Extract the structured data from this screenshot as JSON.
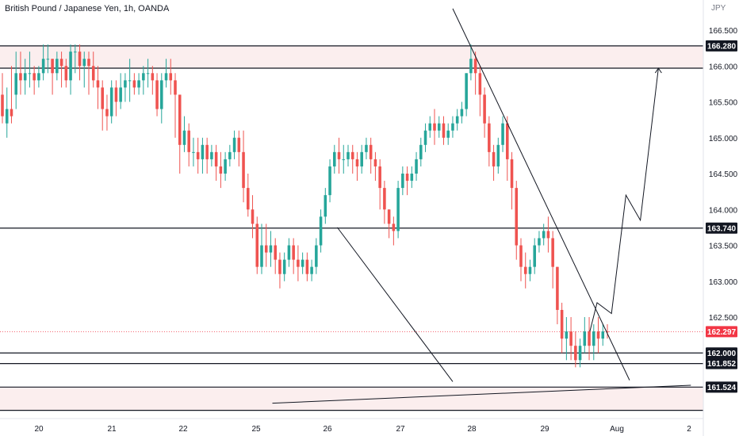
{
  "header": {
    "title": "British Pound / Japanese Yen, 1h, OANDA",
    "currency": "JPY"
  },
  "colors": {
    "up": "#26a69a",
    "down": "#ef5350",
    "zone": "#fbeeee",
    "line": "#131722",
    "last_price": "#f23645"
  },
  "chart_data": {
    "type": "candlestick",
    "instrument": "British Pound / Japanese Yen",
    "timeframe": "1h",
    "source": "OANDA",
    "currency": "JPY",
    "xlabels": [
      "20",
      "21",
      "22",
      "25",
      "26",
      "27",
      "28",
      "29",
      "Aug",
      "2"
    ],
    "yticks": [
      166.5,
      166.0,
      165.5,
      165.0,
      164.5,
      164.0,
      163.5,
      163.0,
      162.5,
      162.0
    ],
    "ylim": [
      161.25,
      166.9
    ],
    "price_labels": [
      {
        "value": "166.280",
        "kind": "level"
      },
      {
        "value": "163.740",
        "kind": "level"
      },
      {
        "value": "162.297",
        "kind": "last"
      },
      {
        "value": "162.000",
        "kind": "level"
      },
      {
        "value": "161.852",
        "kind": "level"
      },
      {
        "value": "161.524",
        "kind": "level"
      }
    ],
    "horizontal_levels": [
      166.28,
      165.97,
      163.74,
      162.0,
      161.852,
      161.524,
      161.2
    ],
    "zones": [
      [
        165.97,
        166.28
      ],
      [
        161.2,
        161.524
      ]
    ],
    "last_price": 162.297,
    "trend_lines": [
      {
        "x1": 0.0,
        "y1": 166.8,
        "x2": 2.45,
        "y2": 161.62
      },
      {
        "x1": -1.6,
        "y1": 163.75,
        "x2": 0.0,
        "y2": 161.6
      },
      {
        "x1": -2.5,
        "y1": 161.3,
        "x2": 3.3,
        "y2": 161.55
      }
    ],
    "projection": [
      [
        1.9,
        162.3
      ],
      [
        2.0,
        162.7
      ],
      [
        2.2,
        162.55
      ],
      [
        2.4,
        164.2
      ],
      [
        2.6,
        163.85
      ],
      [
        2.85,
        165.97
      ]
    ],
    "candles": [
      [
        165.6,
        165.9,
        165.3,
        165.2
      ],
      [
        165.2,
        165.7,
        165.4,
        165.0
      ],
      [
        165.4,
        166.0,
        165.3,
        165.2
      ],
      [
        165.6,
        166.2,
        165.9,
        165.4
      ],
      [
        165.9,
        166.2,
        165.8,
        165.6
      ],
      [
        165.8,
        166.1,
        165.9,
        165.6
      ],
      [
        165.9,
        166.2,
        165.9,
        165.7
      ],
      [
        165.9,
        166.0,
        165.8,
        165.6
      ],
      [
        165.8,
        166.0,
        165.9,
        165.7
      ],
      [
        165.9,
        166.3,
        166.1,
        165.8
      ],
      [
        166.1,
        166.3,
        166.1,
        165.9
      ],
      [
        166.1,
        166.1,
        165.9,
        165.6
      ],
      [
        165.9,
        166.2,
        166.1,
        165.8
      ],
      [
        166.1,
        166.2,
        166.0,
        165.7
      ],
      [
        166.0,
        166.1,
        165.8,
        165.7
      ],
      [
        165.8,
        166.3,
        166.2,
        165.6
      ],
      [
        166.2,
        166.3,
        166.2,
        165.9
      ],
      [
        166.2,
        166.3,
        166.0,
        165.8
      ],
      [
        166.0,
        166.2,
        166.1,
        165.7
      ],
      [
        166.1,
        166.2,
        166.0,
        165.6
      ],
      [
        166.0,
        166.2,
        165.8,
        165.7
      ],
      [
        165.8,
        166.0,
        165.7,
        165.4
      ],
      [
        165.7,
        165.8,
        165.4,
        165.1
      ],
      [
        165.4,
        165.6,
        165.3,
        165.1
      ],
      [
        165.3,
        165.8,
        165.7,
        165.2
      ],
      [
        165.7,
        165.8,
        165.5,
        165.3
      ],
      [
        165.5,
        165.9,
        165.7,
        165.4
      ],
      [
        165.7,
        165.9,
        165.8,
        165.5
      ],
      [
        165.8,
        166.1,
        165.8,
        165.5
      ],
      [
        165.8,
        165.9,
        165.7,
        165.6
      ],
      [
        165.7,
        165.9,
        165.8,
        165.6
      ],
      [
        165.8,
        166.0,
        165.9,
        165.6
      ],
      [
        165.9,
        166.1,
        165.9,
        165.7
      ],
      [
        165.9,
        166.0,
        165.8,
        165.6
      ],
      [
        165.8,
        165.9,
        165.4,
        165.3
      ],
      [
        165.4,
        165.9,
        165.8,
        165.2
      ],
      [
        165.8,
        166.1,
        165.9,
        165.7
      ],
      [
        165.9,
        166.1,
        165.8,
        165.6
      ],
      [
        165.8,
        165.9,
        165.6,
        165.0
      ],
      [
        165.6,
        165.6,
        164.9,
        164.5
      ],
      [
        164.9,
        165.3,
        165.1,
        164.8
      ],
      [
        165.1,
        165.2,
        164.8,
        164.6
      ],
      [
        164.8,
        165.0,
        164.8,
        164.6
      ],
      [
        164.8,
        165.0,
        164.7,
        164.5
      ],
      [
        164.7,
        165.0,
        164.9,
        164.5
      ],
      [
        164.9,
        165.0,
        164.7,
        164.5
      ],
      [
        164.7,
        164.9,
        164.8,
        164.6
      ],
      [
        164.8,
        164.9,
        164.6,
        164.4
      ],
      [
        164.6,
        164.8,
        164.5,
        164.3
      ],
      [
        164.5,
        164.8,
        164.7,
        164.4
      ],
      [
        164.7,
        164.9,
        164.8,
        164.6
      ],
      [
        164.8,
        165.1,
        165.0,
        164.7
      ],
      [
        165.0,
        165.1,
        164.8,
        164.6
      ],
      [
        164.8,
        165.1,
        164.3,
        164.1
      ],
      [
        164.3,
        164.5,
        164.0,
        163.9
      ],
      [
        164.0,
        164.2,
        163.8,
        163.6
      ],
      [
        163.8,
        163.9,
        163.2,
        163.1
      ],
      [
        163.2,
        163.8,
        163.5,
        163.1
      ],
      [
        163.5,
        163.8,
        163.4,
        163.2
      ],
      [
        163.4,
        163.7,
        163.5,
        163.2
      ],
      [
        163.5,
        163.6,
        163.3,
        163.1
      ],
      [
        163.3,
        163.4,
        163.1,
        162.9
      ],
      [
        163.1,
        163.4,
        163.3,
        163.0
      ],
      [
        163.3,
        163.6,
        163.5,
        163.2
      ],
      [
        163.5,
        163.6,
        163.3,
        163.1
      ],
      [
        163.3,
        163.5,
        163.2,
        163.0
      ],
      [
        163.2,
        163.4,
        163.3,
        163.1
      ],
      [
        163.3,
        163.4,
        163.1,
        163.0
      ],
      [
        163.1,
        163.3,
        163.2,
        163.0
      ],
      [
        163.2,
        163.6,
        163.5,
        163.1
      ],
      [
        163.5,
        164.0,
        163.9,
        163.4
      ],
      [
        163.9,
        164.3,
        164.2,
        163.8
      ],
      [
        164.2,
        164.7,
        164.6,
        164.1
      ],
      [
        164.6,
        164.9,
        164.8,
        164.5
      ],
      [
        164.8,
        165.0,
        164.7,
        164.5
      ],
      [
        164.7,
        164.9,
        164.7,
        164.5
      ],
      [
        164.7,
        164.9,
        164.8,
        164.6
      ],
      [
        164.8,
        164.9,
        164.7,
        164.5
      ],
      [
        164.7,
        164.8,
        164.6,
        164.4
      ],
      [
        164.6,
        164.9,
        164.8,
        164.5
      ],
      [
        164.8,
        165.0,
        164.9,
        164.7
      ],
      [
        164.9,
        165.0,
        164.7,
        164.5
      ],
      [
        164.7,
        164.8,
        164.6,
        164.4
      ],
      [
        164.6,
        164.7,
        164.3,
        164.0
      ],
      [
        164.3,
        164.4,
        164.0,
        163.8
      ],
      [
        164.0,
        164.0,
        163.8,
        163.6
      ],
      [
        163.8,
        163.9,
        163.7,
        163.5
      ],
      [
        163.7,
        164.4,
        164.3,
        163.6
      ],
      [
        164.3,
        164.6,
        164.5,
        164.2
      ],
      [
        164.5,
        164.6,
        164.4,
        164.2
      ],
      [
        164.4,
        164.6,
        164.5,
        164.3
      ],
      [
        164.5,
        164.8,
        164.7,
        164.4
      ],
      [
        164.7,
        165.0,
        164.9,
        164.6
      ],
      [
        164.9,
        165.2,
        165.1,
        164.8
      ],
      [
        165.1,
        165.3,
        165.2,
        165.0
      ],
      [
        165.2,
        165.4,
        165.1,
        164.9
      ],
      [
        165.1,
        165.3,
        165.2,
        165.0
      ],
      [
        165.2,
        165.3,
        165.0,
        164.9
      ],
      [
        165.0,
        165.2,
        165.1,
        164.9
      ],
      [
        165.1,
        165.3,
        165.2,
        165.0
      ],
      [
        165.2,
        165.4,
        165.3,
        165.1
      ],
      [
        165.3,
        165.5,
        165.4,
        165.2
      ],
      [
        165.4,
        165.9,
        165.9,
        165.3
      ],
      [
        165.9,
        166.3,
        166.1,
        165.8
      ],
      [
        166.1,
        166.2,
        165.9,
        165.6
      ],
      [
        165.9,
        166.0,
        165.6,
        165.3
      ],
      [
        165.6,
        165.7,
        165.2,
        165.0
      ],
      [
        165.2,
        165.3,
        164.8,
        164.6
      ],
      [
        164.8,
        164.9,
        164.6,
        164.4
      ],
      [
        164.6,
        165.0,
        164.9,
        164.5
      ],
      [
        164.9,
        165.3,
        165.2,
        164.8
      ],
      [
        165.2,
        165.3,
        164.7,
        164.4
      ],
      [
        164.7,
        164.8,
        164.3,
        164.0
      ],
      [
        164.3,
        164.4,
        163.5,
        163.3
      ],
      [
        163.5,
        163.6,
        163.2,
        163.0
      ],
      [
        163.2,
        163.4,
        163.1,
        162.9
      ],
      [
        163.1,
        163.3,
        163.2,
        163.0
      ],
      [
        163.2,
        163.6,
        163.5,
        163.1
      ],
      [
        163.5,
        163.7,
        163.6,
        163.4
      ],
      [
        163.6,
        163.8,
        163.7,
        163.5
      ],
      [
        163.7,
        163.9,
        163.6,
        163.4
      ],
      [
        163.6,
        163.7,
        163.2,
        162.9
      ],
      [
        163.2,
        163.2,
        162.6,
        162.4
      ],
      [
        162.6,
        162.7,
        162.2,
        162.0
      ],
      [
        162.2,
        162.5,
        162.3,
        161.9
      ],
      [
        162.3,
        162.5,
        162.1,
        161.9
      ],
      [
        162.1,
        162.3,
        161.9,
        161.8
      ],
      [
        161.9,
        162.2,
        162.1,
        161.8
      ],
      [
        162.1,
        162.5,
        162.3,
        162.0
      ],
      [
        162.3,
        162.5,
        162.1,
        161.9
      ],
      [
        162.1,
        162.4,
        162.3,
        161.9
      ],
      [
        162.3,
        162.5,
        162.2,
        162.0
      ],
      [
        162.2,
        162.4,
        162.3,
        162.1
      ],
      [
        162.3,
        162.4,
        162.297,
        162.2
      ]
    ]
  }
}
